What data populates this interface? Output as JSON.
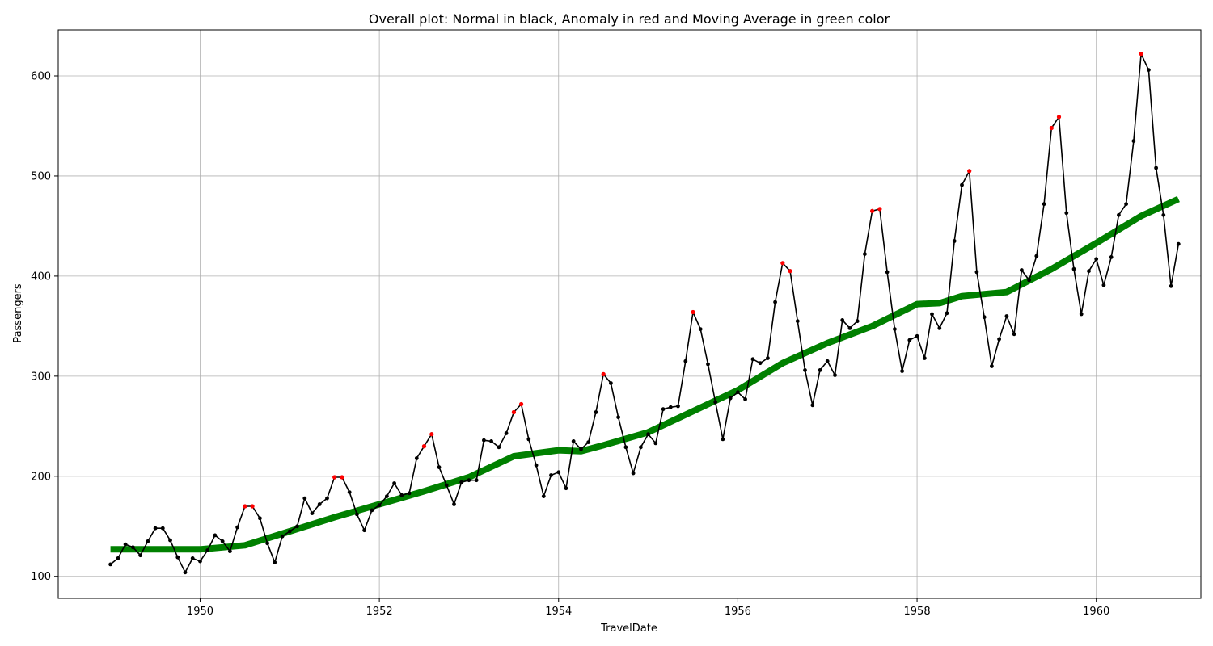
{
  "chart_data": {
    "type": "line",
    "title": "Overall plot: Normal in black, Anomaly in red and Moving Average in green color",
    "xlabel": "TravelDate",
    "ylabel": "Passengers",
    "xlim": [
      "1948-06-01",
      "1961-03-01"
    ],
    "ylim": [
      78,
      646
    ],
    "xticks": [
      "1950",
      "1952",
      "1954",
      "1956",
      "1958",
      "1960"
    ],
    "yticks": [
      "100",
      "200",
      "300",
      "400",
      "500",
      "600"
    ],
    "grid": true,
    "legend": "none",
    "series": [
      {
        "label": "Normal",
        "color": "#000000",
        "x": [
          "1949-01",
          "1949-02",
          "1949-03",
          "1949-04",
          "1949-05",
          "1949-06",
          "1949-07",
          "1949-08",
          "1949-09",
          "1949-10",
          "1949-11",
          "1949-12",
          "1950-01",
          "1950-02",
          "1950-03",
          "1950-04",
          "1950-05",
          "1950-06",
          "1950-07",
          "1950-08",
          "1950-09",
          "1950-10",
          "1950-11",
          "1950-12",
          "1951-01",
          "1951-02",
          "1951-03",
          "1951-04",
          "1951-05",
          "1951-06",
          "1951-07",
          "1951-08",
          "1951-09",
          "1951-10",
          "1951-11",
          "1951-12",
          "1952-01",
          "1952-02",
          "1952-03",
          "1952-04",
          "1952-05",
          "1952-06",
          "1952-07",
          "1952-08",
          "1952-09",
          "1952-10",
          "1952-11",
          "1952-12",
          "1953-01",
          "1953-02",
          "1953-03",
          "1953-04",
          "1953-05",
          "1953-06",
          "1953-07",
          "1953-08",
          "1953-09",
          "1953-10",
          "1953-11",
          "1953-12",
          "1954-01",
          "1954-02",
          "1954-03",
          "1954-04",
          "1954-05",
          "1954-06",
          "1954-07",
          "1954-08",
          "1954-09",
          "1954-10",
          "1954-11",
          "1954-12",
          "1955-01",
          "1955-02",
          "1955-03",
          "1955-04",
          "1955-05",
          "1955-06",
          "1955-07",
          "1955-08",
          "1955-09",
          "1955-10",
          "1955-11",
          "1955-12",
          "1956-01",
          "1956-02",
          "1956-03",
          "1956-04",
          "1956-05",
          "1956-06",
          "1956-07",
          "1956-08",
          "1956-09",
          "1956-10",
          "1956-11",
          "1956-12",
          "1957-01",
          "1957-02",
          "1957-03",
          "1957-04",
          "1957-05",
          "1957-06",
          "1957-07",
          "1957-08",
          "1957-09",
          "1957-10",
          "1957-11",
          "1957-12",
          "1958-01",
          "1958-02",
          "1958-03",
          "1958-04",
          "1958-05",
          "1958-06",
          "1958-07",
          "1958-08",
          "1958-09",
          "1958-10",
          "1958-11",
          "1958-12",
          "1959-01",
          "1959-02",
          "1959-03",
          "1959-04",
          "1959-05",
          "1959-06",
          "1959-07",
          "1959-08",
          "1959-09",
          "1959-10",
          "1959-11",
          "1959-12",
          "1960-01",
          "1960-02",
          "1960-03",
          "1960-04",
          "1960-05",
          "1960-06",
          "1960-07",
          "1960-08",
          "1960-09",
          "1960-10",
          "1960-11",
          "1960-12"
        ],
        "y": [
          112,
          118,
          132,
          129,
          121,
          135,
          148,
          148,
          136,
          119,
          104,
          118,
          115,
          126,
          141,
          135,
          125,
          149,
          170,
          170,
          158,
          133,
          114,
          140,
          145,
          150,
          178,
          163,
          172,
          178,
          199,
          199,
          184,
          162,
          146,
          166,
          171,
          180,
          193,
          181,
          183,
          218,
          230,
          242,
          209,
          191,
          172,
          194,
          196,
          196,
          236,
          235,
          229,
          243,
          264,
          272,
          237,
          211,
          180,
          201,
          204,
          188,
          235,
          227,
          234,
          264,
          302,
          293,
          259,
          229,
          203,
          229,
          242,
          233,
          267,
          269,
          270,
          315,
          364,
          347,
          312,
          274,
          237,
          278,
          284,
          277,
          317,
          313,
          318,
          374,
          413,
          405,
          355,
          306,
          271,
          306,
          315,
          301,
          356,
          348,
          355,
          422,
          465,
          467,
          404,
          347,
          305,
          336,
          340,
          318,
          362,
          348,
          363,
          435,
          491,
          505,
          404,
          359,
          310,
          337,
          360,
          342,
          406,
          396,
          420,
          472,
          548,
          559,
          463,
          407,
          362,
          405,
          417,
          391,
          419,
          461,
          472,
          535,
          622,
          606,
          508,
          461,
          390,
          432
        ]
      },
      {
        "label": "Anomaly",
        "color": "#ff0000",
        "x": [
          "1950-07",
          "1950-08",
          "1951-07",
          "1951-08",
          "1952-07",
          "1952-08",
          "1953-07",
          "1953-08",
          "1954-07",
          "1955-07",
          "1956-07",
          "1956-08",
          "1957-07",
          "1957-08",
          "1958-08",
          "1959-07",
          "1959-08",
          "1960-07"
        ],
        "y": [
          170,
          170,
          199,
          199,
          230,
          242,
          264,
          272,
          302,
          364,
          413,
          405,
          465,
          467,
          505,
          548,
          559,
          622
        ]
      },
      {
        "label": "Moving Average",
        "color": "#008000",
        "x": [
          "1949-01",
          "1949-07",
          "1950-01",
          "1950-07",
          "1951-01",
          "1951-07",
          "1952-01",
          "1952-07",
          "1953-01",
          "1953-07",
          "1954-01",
          "1954-04",
          "1954-07",
          "1955-01",
          "1955-07",
          "1956-01",
          "1956-07",
          "1957-01",
          "1957-07",
          "1958-01",
          "1958-04",
          "1958-07",
          "1959-01",
          "1959-07",
          "1960-01",
          "1960-07",
          "1960-12"
        ],
        "y": [
          127,
          127,
          127,
          131,
          145,
          159,
          172,
          185,
          199,
          220,
          226,
          225,
          231,
          244,
          265,
          286,
          313,
          333,
          350,
          372,
          373,
          380,
          384,
          407,
          433,
          460,
          477
        ]
      }
    ]
  }
}
